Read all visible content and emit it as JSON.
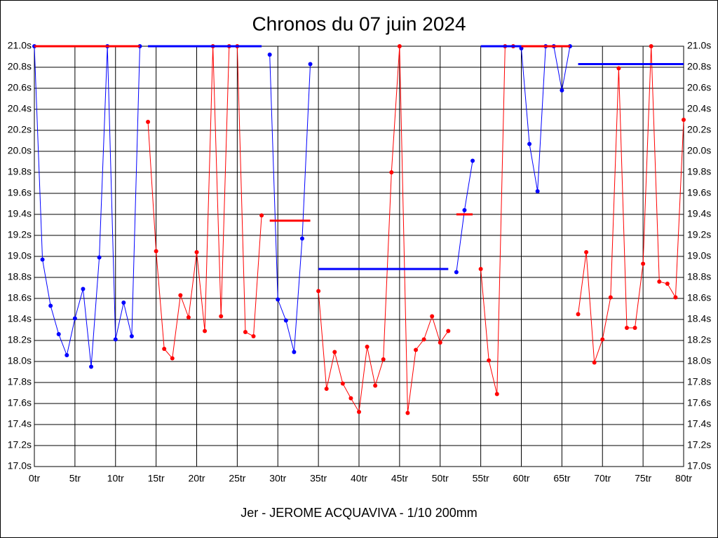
{
  "chart_data": {
    "type": "line",
    "title": "Chronos du 07 juin 2024",
    "subtitle": "Jer - JEROME ACQUAVIVA - 1/10 200mm",
    "xlim": [
      0,
      80
    ],
    "ylim": [
      17.0,
      21.0
    ],
    "grid": true,
    "xticks": [
      {
        "value": 0,
        "label": "0tr"
      },
      {
        "value": 5,
        "label": "5tr"
      },
      {
        "value": 10,
        "label": "10tr"
      },
      {
        "value": 15,
        "label": "15tr"
      },
      {
        "value": 20,
        "label": "20tr"
      },
      {
        "value": 25,
        "label": "25tr"
      },
      {
        "value": 30,
        "label": "30tr"
      },
      {
        "value": 35,
        "label": "35tr"
      },
      {
        "value": 40,
        "label": "40tr"
      },
      {
        "value": 45,
        "label": "45tr"
      },
      {
        "value": 50,
        "label": "50tr"
      },
      {
        "value": 55,
        "label": "55tr"
      },
      {
        "value": 60,
        "label": "60tr"
      },
      {
        "value": 65,
        "label": "65tr"
      },
      {
        "value": 70,
        "label": "70tr"
      },
      {
        "value": 75,
        "label": "75tr"
      },
      {
        "value": 80,
        "label": "80tr"
      }
    ],
    "yticks": [
      {
        "value": 17.0,
        "label": "17.0s"
      },
      {
        "value": 17.2,
        "label": "17.2s"
      },
      {
        "value": 17.4,
        "label": "17.4s"
      },
      {
        "value": 17.6,
        "label": "17.6s"
      },
      {
        "value": 17.8,
        "label": "17.8s"
      },
      {
        "value": 18.0,
        "label": "18.0s"
      },
      {
        "value": 18.2,
        "label": "18.2s"
      },
      {
        "value": 18.4,
        "label": "18.4s"
      },
      {
        "value": 18.6,
        "label": "18.6s"
      },
      {
        "value": 18.8,
        "label": "18.8s"
      },
      {
        "value": 19.0,
        "label": "19.0s"
      },
      {
        "value": 19.2,
        "label": "19.2s"
      },
      {
        "value": 19.4,
        "label": "19.4s"
      },
      {
        "value": 19.6,
        "label": "19.6s"
      },
      {
        "value": 19.8,
        "label": "19.8s"
      },
      {
        "value": 20.0,
        "label": "20.0s"
      },
      {
        "value": 20.2,
        "label": "20.2s"
      },
      {
        "value": 20.4,
        "label": "20.4s"
      },
      {
        "value": 20.6,
        "label": "20.6s"
      },
      {
        "value": 20.8,
        "label": "20.8s"
      },
      {
        "value": 21.0,
        "label": "21.0s"
      }
    ],
    "series": [
      {
        "color": "#0000ff",
        "x": [
          0,
          1,
          2,
          3,
          4,
          5,
          6,
          7,
          8,
          9,
          10,
          11,
          12,
          13
        ],
        "values": [
          21.0,
          18.97,
          18.53,
          18.26,
          18.06,
          18.41,
          18.69,
          17.95,
          18.99,
          21.0,
          18.21,
          18.56,
          18.24,
          21.0
        ]
      },
      {
        "color": "#ff0000",
        "x": [
          14,
          15,
          16,
          17,
          18,
          19,
          20,
          21,
          22,
          23,
          24,
          25,
          26,
          27,
          28
        ],
        "values": [
          20.28,
          19.05,
          18.12,
          18.03,
          18.63,
          18.42,
          19.04,
          18.29,
          21.0,
          18.43,
          21.0,
          21.0,
          18.28,
          18.24,
          19.39
        ]
      },
      {
        "color": "#0000ff",
        "x": [
          29,
          30,
          31,
          32,
          33,
          34
        ],
        "values": [
          20.92,
          18.59,
          18.39,
          18.09,
          19.17,
          20.83
        ]
      },
      {
        "color": "#ff0000",
        "x": [
          35,
          36,
          37,
          38,
          39,
          40,
          41,
          42,
          43,
          44,
          45,
          46,
          47,
          48,
          49,
          50,
          51
        ],
        "values": [
          18.67,
          17.74,
          18.09,
          17.79,
          17.65,
          17.52,
          18.14,
          17.77,
          18.02,
          19.8,
          21.0,
          17.51,
          18.11,
          18.21,
          18.43,
          18.18,
          18.29
        ]
      },
      {
        "color": "#0000ff",
        "x": [
          52,
          53,
          54
        ],
        "values": [
          18.85,
          19.44,
          19.91
        ]
      },
      {
        "color": "#ff0000",
        "x": [
          55,
          56,
          57,
          58,
          59
        ],
        "values": [
          18.88,
          18.01,
          17.69,
          21.0,
          21.0
        ]
      },
      {
        "color": "#0000ff",
        "x": [
          60,
          61,
          62,
          63,
          64,
          65,
          66
        ],
        "values": [
          20.98,
          20.07,
          19.62,
          21.0,
          21.0,
          20.58,
          21.0
        ]
      },
      {
        "color": "#ff0000",
        "x": [
          67,
          68,
          69,
          70,
          71,
          72,
          73,
          74,
          75,
          76,
          77,
          78,
          79,
          80
        ],
        "values": [
          18.45,
          19.04,
          17.99,
          18.21,
          18.61,
          20.79,
          18.32,
          18.32,
          18.93,
          21.0,
          18.76,
          18.74,
          18.61,
          20.3
        ]
      }
    ],
    "averages": [
      {
        "color": "#ff0000",
        "x": [
          0,
          13
        ],
        "value": 21.0
      },
      {
        "color": "#0000ff",
        "x": [
          14,
          28
        ],
        "value": 21.0
      },
      {
        "color": "#ff0000",
        "x": [
          29,
          34
        ],
        "value": 19.34
      },
      {
        "color": "#0000ff",
        "x": [
          35,
          51
        ],
        "value": 18.88
      },
      {
        "color": "#ff0000",
        "x": [
          52,
          54
        ],
        "value": 19.4
      },
      {
        "color": "#0000ff",
        "x": [
          55,
          60
        ],
        "value": 21.0
      },
      {
        "color": "#ff0000",
        "x": [
          60,
          66
        ],
        "value": 21.0
      },
      {
        "color": "#0000ff",
        "x": [
          67,
          80
        ],
        "value": 20.83
      }
    ]
  }
}
